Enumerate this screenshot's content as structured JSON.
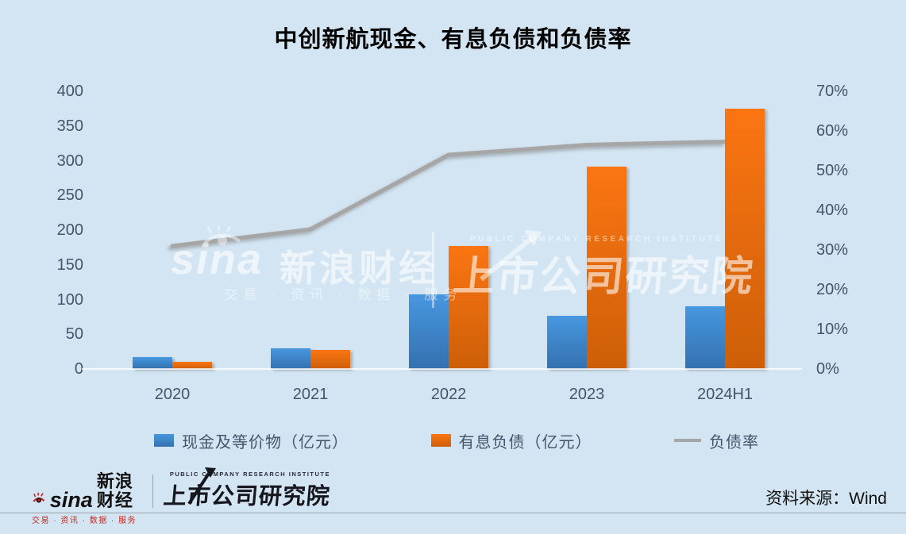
{
  "title": "中创新航现金、有息负债和负债率",
  "chart_data": {
    "type": "bar",
    "title": "中创新航现金、有息负债和负债率",
    "categories": [
      "2020",
      "2021",
      "2022",
      "2023",
      "2024H1"
    ],
    "series": [
      {
        "name": "现金及等价物（亿元）",
        "type": "bar",
        "axis": "left",
        "color": "#3F84C9",
        "color_top": "#4797E0",
        "color_bottom": "#3471AF",
        "values": [
          17,
          30,
          108,
          77,
          90
        ]
      },
      {
        "name": "有息负债（亿元）",
        "type": "bar",
        "axis": "left",
        "color": "#EC6B0E",
        "color_top": "#FB7512",
        "color_bottom": "#CD5F08",
        "values": [
          10,
          28,
          177,
          292,
          375
        ]
      },
      {
        "name": "负债率",
        "type": "line",
        "axis": "right",
        "color": "#A6A6A6",
        "values": [
          31.0,
          35.2,
          54.0,
          56.5,
          57.3
        ]
      }
    ],
    "left_axis": {
      "min": 0,
      "max": 400,
      "tick_labels": [
        "400",
        "350",
        "300",
        "250",
        "200",
        "150",
        "100",
        "50",
        "0"
      ]
    },
    "right_axis": {
      "min": 0,
      "max": 70,
      "unit": "%",
      "tick_labels": [
        "70%",
        "60%",
        "50%",
        "40%",
        "30%",
        "20%",
        "10%",
        "0%"
      ]
    },
    "legend_position": "bottom",
    "grid": false
  },
  "colors": {
    "background": "#D3E5F2",
    "axis_text": "#44546A",
    "bar_cash_blue": "#3F84C9",
    "bar_debt_orange": "#EC6B0E",
    "ratio_line_gray": "#A6A6A6",
    "sina_red": "#C8281E"
  },
  "watermark": {
    "sina_wordmark": "sina",
    "sina_brand": "新浪财经",
    "sina_tagline": "交易 · 资讯 · 数据 · 服务",
    "institute_en": "PUBLIC COMPANY RESEARCH INSTITUTE",
    "institute_name": "上市公司研究院"
  },
  "footer": {
    "sina_wordmark": "sina",
    "sina_brand": "新浪财经",
    "sina_tagline": "交易 · 资讯 · 数据 · 服务",
    "institute_en": "PUBLIC COMPANY RESEARCH INSTITUTE",
    "institute_name": "上市公司研究院",
    "source": "资料来源：Wind"
  }
}
